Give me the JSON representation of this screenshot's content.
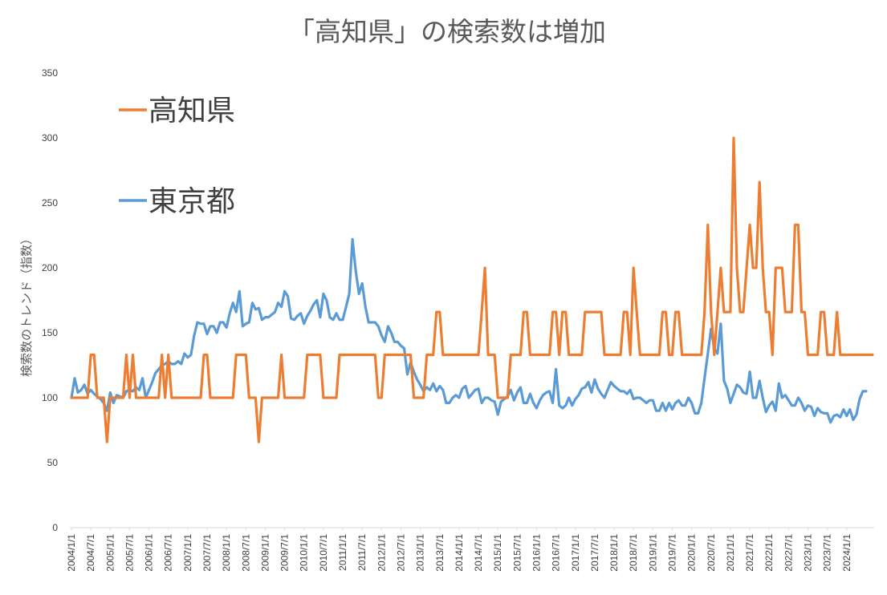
{
  "chart_data": {
    "type": "line",
    "title": "「高知県」の検索数は増加",
    "xlabel": "",
    "ylabel": "検索数のトレンド（指数）",
    "ylim": [
      0,
      350
    ],
    "yticks": [
      "0",
      "50",
      "100",
      "150",
      "200",
      "250",
      "300",
      "350"
    ],
    "x_tick_labels": [
      "2004/1/1",
      "2004/7/1",
      "2005/1/1",
      "2005/7/1",
      "2006/1/1",
      "2006/7/1",
      "2007/1/1",
      "2007/7/1",
      "2008/1/1",
      "2008/7/1",
      "2009/1/1",
      "2009/7/1",
      "2010/1/1",
      "2010/7/1",
      "2011/1/1",
      "2011/7/1",
      "2012/1/1",
      "2012/7/1",
      "2013/1/1",
      "2013/7/1",
      "2014/1/1",
      "2014/7/1",
      "2015/1/1",
      "2015/7/1",
      "2016/1/1",
      "2016/7/1",
      "2017/1/1",
      "2017/7/1",
      "2018/1/1",
      "2018/7/1",
      "2019/1/1",
      "2019/7/1",
      "2020/1/1",
      "2020/7/1",
      "2021/1/1",
      "2021/7/1",
      "2022/1/1",
      "2022/7/1",
      "2023/1/1",
      "2023/7/1",
      "2024/1/1"
    ],
    "x_start": "2004-01",
    "grid": false,
    "legend_position": "top-left",
    "series": [
      {
        "name": "高知県",
        "color": "#ED7D31",
        "values": [
          100,
          100,
          100,
          100,
          100,
          100,
          133,
          133,
          100,
          100,
          100,
          66,
          100,
          100,
          100,
          100,
          100,
          133,
          100,
          133,
          100,
          100,
          100,
          100,
          100,
          100,
          100,
          100,
          133,
          100,
          133,
          100,
          100,
          100,
          100,
          100,
          100,
          100,
          100,
          100,
          100,
          133,
          133,
          100,
          100,
          100,
          100,
          100,
          100,
          100,
          100,
          133,
          133,
          133,
          133,
          100,
          100,
          100,
          66,
          100,
          100,
          100,
          100,
          100,
          100,
          133,
          100,
          100,
          100,
          100,
          100,
          100,
          100,
          133,
          133,
          133,
          133,
          133,
          100,
          100,
          100,
          100,
          100,
          133,
          133,
          133,
          133,
          133,
          133,
          133,
          133,
          133,
          133,
          133,
          133,
          100,
          100,
          133,
          133,
          133,
          133,
          133,
          133,
          133,
          133,
          133,
          100,
          100,
          100,
          100,
          133,
          133,
          133,
          166,
          166,
          133,
          133,
          133,
          133,
          133,
          133,
          133,
          133,
          133,
          133,
          133,
          133,
          166,
          200,
          133,
          133,
          133,
          100,
          100,
          100,
          100,
          133,
          133,
          133,
          133,
          166,
          166,
          133,
          133,
          133,
          133,
          133,
          133,
          133,
          166,
          166,
          133,
          166,
          166,
          133,
          133,
          133,
          133,
          133,
          166,
          166,
          166,
          166,
          166,
          166,
          133,
          133,
          133,
          133,
          133,
          133,
          166,
          166,
          133,
          200,
          166,
          133,
          133,
          133,
          133,
          133,
          133,
          133,
          166,
          166,
          133,
          133,
          166,
          166,
          133,
          133,
          133,
          133,
          133,
          133,
          133,
          166,
          233,
          166,
          133,
          166,
          200,
          166,
          166,
          166,
          300,
          200,
          166,
          166,
          200,
          233,
          200,
          200,
          266,
          200,
          166,
          166,
          133,
          200,
          200,
          200,
          166,
          166,
          166,
          233,
          233,
          166,
          166,
          133,
          133,
          133,
          133,
          166,
          166,
          133,
          133,
          133,
          166,
          133,
          133,
          133,
          133,
          133,
          133,
          133,
          133,
          133,
          133,
          133
        ]
      },
      {
        "name": "東京都",
        "color": "#5B9BD5",
        "values": [
          100,
          115,
          104,
          106,
          110,
          103,
          106,
          103,
          101,
          99,
          96,
          90,
          104,
          96,
          102,
          101,
          100,
          105,
          106,
          105,
          108,
          106,
          115,
          100,
          106,
          112,
          119,
          122,
          125,
          126,
          128,
          126,
          126,
          128,
          126,
          134,
          131,
          133,
          148,
          158,
          157,
          157,
          149,
          155,
          155,
          150,
          158,
          158,
          154,
          165,
          173,
          166,
          182,
          155,
          157,
          158,
          173,
          168,
          169,
          160,
          162,
          162,
          164,
          166,
          173,
          170,
          182,
          178,
          161,
          160,
          163,
          165,
          157,
          163,
          167,
          172,
          175,
          162,
          180,
          175,
          162,
          160,
          165,
          160,
          160,
          170,
          180,
          222,
          198,
          180,
          188,
          170,
          158,
          158,
          158,
          155,
          148,
          143,
          155,
          150,
          143,
          143,
          140,
          138,
          118,
          127,
          120,
          114,
          110,
          105,
          108,
          106,
          111,
          105,
          109,
          106,
          96,
          96,
          100,
          102,
          100,
          107,
          109,
          100,
          103,
          106,
          107,
          96,
          100,
          100,
          98,
          97,
          87,
          97,
          99,
          101,
          106,
          98,
          104,
          108,
          96,
          96,
          103,
          96,
          92,
          98,
          102,
          104,
          105,
          96,
          122,
          94,
          92,
          94,
          100,
          94,
          99,
          102,
          107,
          108,
          112,
          104,
          114,
          107,
          103,
          100,
          106,
          112,
          109,
          107,
          105,
          105,
          103,
          106,
          99,
          100,
          100,
          98,
          96,
          98,
          98,
          90,
          90,
          96,
          90,
          96,
          91,
          96,
          98,
          94,
          94,
          100,
          96,
          88,
          88,
          96,
          115,
          134,
          153,
          138,
          134,
          157,
          113,
          107,
          96,
          103,
          110,
          108,
          104,
          103,
          120,
          100,
          100,
          113,
          100,
          89,
          94,
          97,
          90,
          111,
          100,
          102,
          98,
          94,
          94,
          100,
          96,
          90,
          94,
          93,
          86,
          92,
          89,
          88,
          88,
          81,
          86,
          87,
          85,
          91,
          86,
          91,
          83,
          87,
          99,
          105,
          105
        ]
      }
    ]
  }
}
